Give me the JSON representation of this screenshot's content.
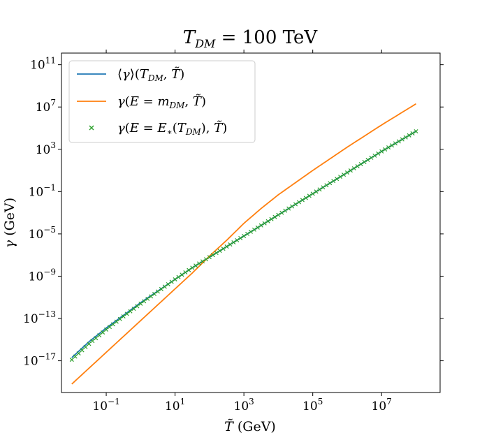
{
  "chart_data": {
    "type": "line",
    "title": "T_DM = 100 TeV",
    "xlabel": "T̃ (GeV)",
    "ylabel": "γ (GeV)",
    "xscale": "log",
    "yscale": "log",
    "xlim_log10": [
      -2.3,
      8.7
    ],
    "ylim_log10": [
      -20,
      12.1
    ],
    "x_ticks": [
      {
        "exp": "-1"
      },
      {
        "exp": "1"
      },
      {
        "exp": "3"
      },
      {
        "exp": "5"
      },
      {
        "exp": "7"
      }
    ],
    "y_ticks": [
      {
        "exp": "11"
      },
      {
        "exp": "7"
      },
      {
        "exp": "3"
      },
      {
        "exp": "-1"
      },
      {
        "exp": "-5"
      },
      {
        "exp": "-9"
      },
      {
        "exp": "-13"
      },
      {
        "exp": "-17"
      }
    ],
    "tick_base": "10",
    "legend_position": "upper-left",
    "series": [
      {
        "name": "⟨γ⟩(T_DM, T̃)",
        "style": "line",
        "color": "#1f77b4",
        "x_log10": [
          -2,
          -1.5,
          -1,
          -0.5,
          0,
          0.5,
          1,
          1.5,
          2,
          3,
          4,
          5,
          6,
          7,
          8
        ],
        "y_log10": [
          -16.7,
          -15.2,
          -13.9,
          -12.7,
          -11.5,
          -10.4,
          -9.3,
          -8.2,
          -7.2,
          -5.2,
          -3.2,
          -1.2,
          0.8,
          2.8,
          4.7
        ]
      },
      {
        "name": "γ(E = m_DM, T̃)",
        "style": "line",
        "color": "#ff7f0e",
        "x_log10": [
          -2,
          -1.5,
          -1,
          -0.5,
          0,
          0.5,
          1,
          1.5,
          2,
          2.5,
          3,
          3.5,
          4,
          5,
          6,
          7,
          8
        ],
        "y_log10": [
          -19.2,
          -17.7,
          -16.2,
          -14.7,
          -13.2,
          -11.7,
          -10.2,
          -8.7,
          -7.1,
          -5.6,
          -4.0,
          -2.6,
          -1.3,
          1.0,
          3.2,
          5.3,
          7.3
        ]
      },
      {
        "name": "γ(E = E*(T_DM), T̃)",
        "style": "scatter",
        "marker": "x",
        "color": "#2ca02c",
        "x_log10": [
          -2,
          -1.5,
          -1,
          -0.5,
          0,
          0.5,
          1,
          1.5,
          2,
          3,
          4,
          5,
          6,
          7,
          8
        ],
        "y_log10": [
          -16.9,
          -15.4,
          -14.05,
          -12.8,
          -11.6,
          -10.45,
          -9.3,
          -8.2,
          -7.2,
          -5.2,
          -3.2,
          -1.2,
          0.8,
          2.8,
          4.7
        ]
      }
    ]
  }
}
